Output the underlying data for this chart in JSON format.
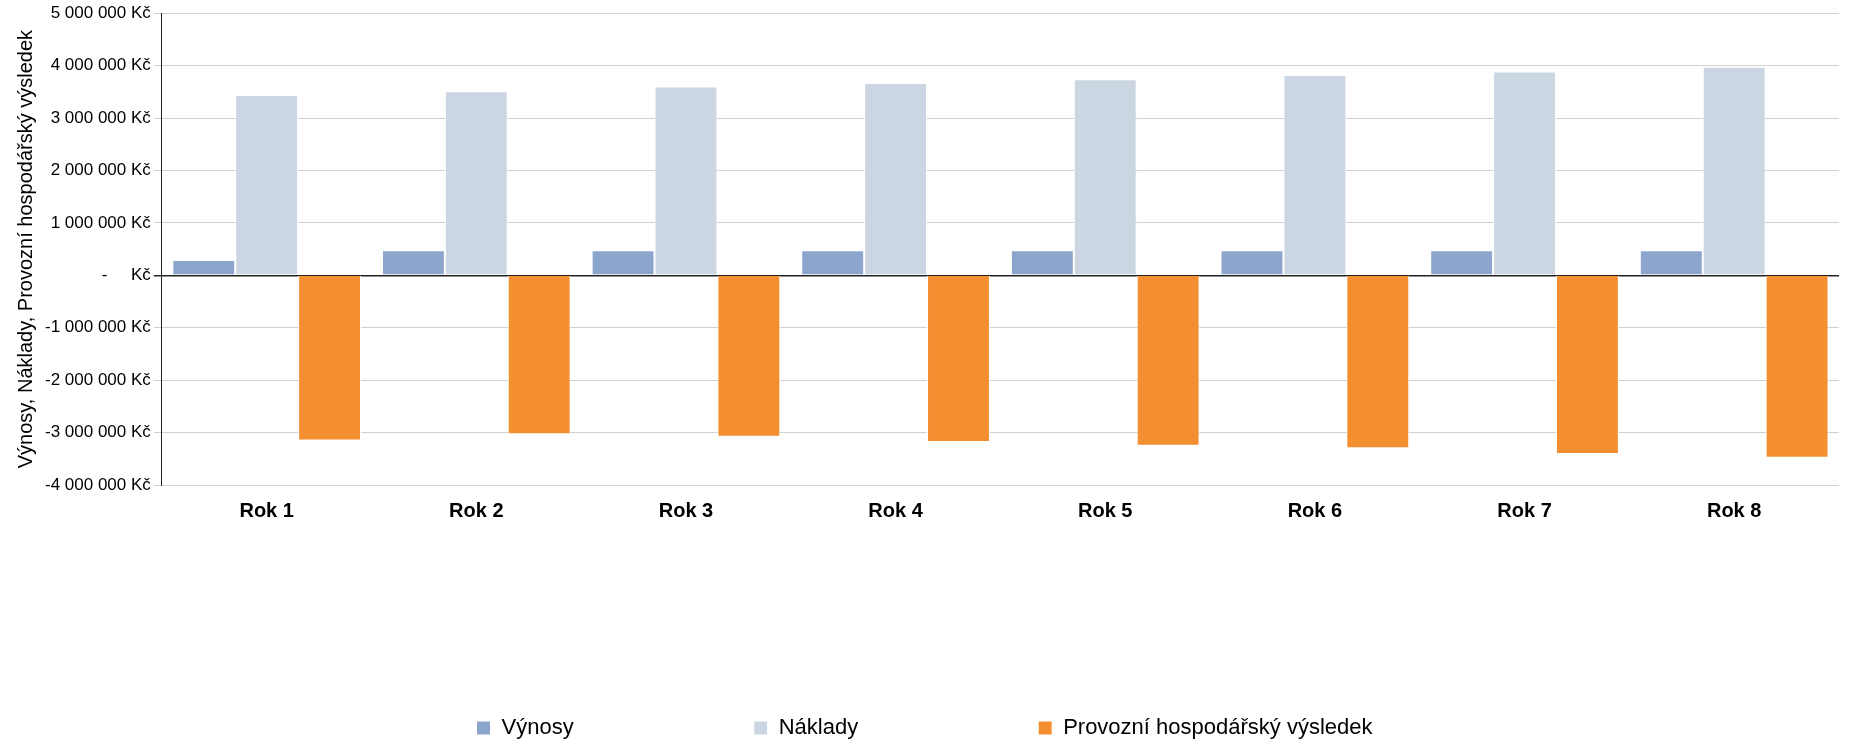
{
  "chart_data": {
    "type": "bar",
    "ylabel": "Výnosy, Náklady, Provozní hospodářský výsledek",
    "categories": [
      "Rok 1",
      "Rok 2",
      "Rok 3",
      "Rok 4",
      "Rok 5",
      "Rok 6",
      "Rok 7",
      "Rok 8"
    ],
    "series": [
      {
        "name": "Výnosy",
        "color": "#8ba5cc",
        "values": [
          290000,
          480000,
          480000,
          480000,
          480000,
          480000,
          480000,
          480000
        ]
      },
      {
        "name": "Náklady",
        "color": "#ccd6e2",
        "values": [
          3440000,
          3510000,
          3600000,
          3670000,
          3740000,
          3820000,
          3890000,
          3980000
        ]
      },
      {
        "name": "Provozní hospodářský výsledek",
        "color": "#f38f31",
        "values": [
          -3150000,
          -3030000,
          -3080000,
          -3180000,
          -3250000,
          -3300000,
          -3410000,
          -3480000
        ]
      }
    ],
    "ylim": [
      -4000000,
      5000000
    ],
    "yticks": [
      {
        "value": -4000000,
        "label": "-4 000 000 Kč"
      },
      {
        "value": -3000000,
        "label": "-3 000 000 Kč"
      },
      {
        "value": -2000000,
        "label": "-2 000 000 Kč"
      },
      {
        "value": -1000000,
        "label": "-1 000 000 Kč"
      },
      {
        "value": 0,
        "label": "-     Kč"
      },
      {
        "value": 1000000,
        "label": "1 000 000 Kč"
      },
      {
        "value": 2000000,
        "label": "2 000 000 Kč"
      },
      {
        "value": 3000000,
        "label": "3 000 000 Kč"
      },
      {
        "value": 4000000,
        "label": "4 000 000 Kč"
      },
      {
        "value": 5000000,
        "label": "5 000 000 Kč"
      }
    ],
    "grid": "y",
    "legend": "bottom"
  }
}
